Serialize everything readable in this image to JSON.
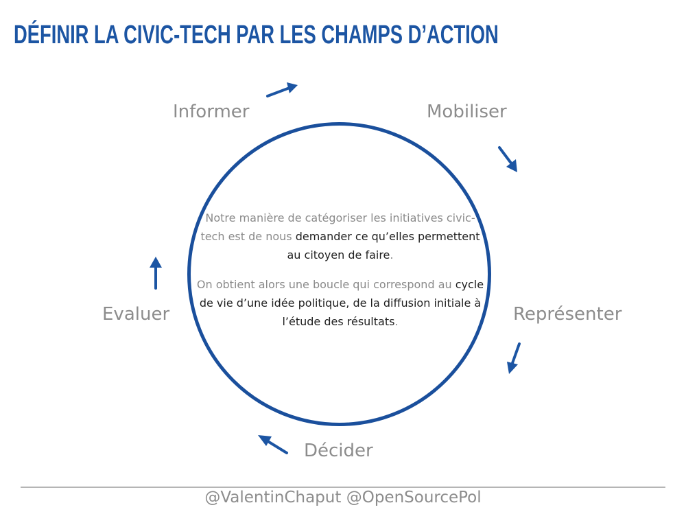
{
  "title": "DÉFINIR LA CIVIC-TECH PAR LES CHAMPS D’ACTION",
  "stages": {
    "informer": "Informer",
    "mobiliser": "Mobiliser",
    "representer": "Représenter",
    "decider": "Décider",
    "evaluer": "Evaluer"
  },
  "center": {
    "p1_part1": "Notre manière de catégoriser les initiatives civic-tech est de nous ",
    "p1_part2": "demander ce qu’elles permettent au citoyen de faire",
    "p1_part3": ".",
    "p2_part1": "On obtient alors une boucle qui correspond au ",
    "p2_part2": "cycle de vie d’une idée politique, de la diffusion initiale à l’étude des résultats",
    "p2_part3": "."
  },
  "footer": "@ValentinChaput @OpenSourcePol",
  "colors": {
    "accent": "#1c55a3",
    "circle": "#1a4f9c",
    "arrow": "#1c55a3",
    "label": "#8c8c8c"
  },
  "icons": {
    "arrows": [
      "arrow-right-icon",
      "arrow-down-right-icon",
      "arrow-down-left-icon",
      "arrow-up-left-icon",
      "arrow-up-icon"
    ]
  }
}
